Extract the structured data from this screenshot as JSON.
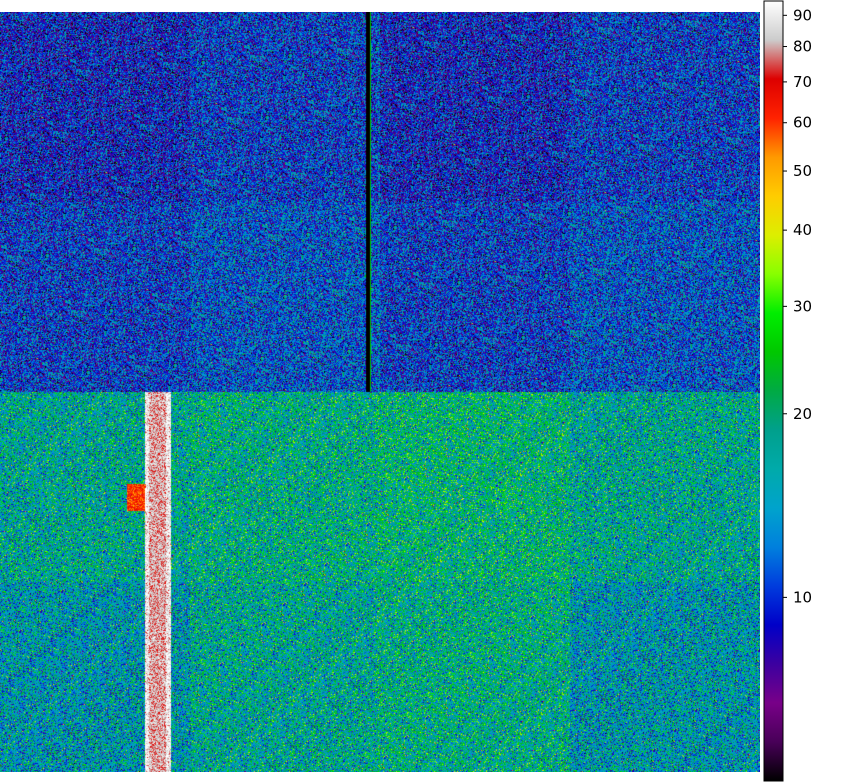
{
  "chart_data": {
    "type": "heatmap",
    "title": "",
    "xlabel": "",
    "ylabel": "",
    "colorbar": {
      "scale": "log",
      "range": [
        5,
        95
      ],
      "colormap": "nipy_spectral",
      "ticks": [
        {
          "value": 10,
          "label": "10"
        },
        {
          "value": 20,
          "label": "20"
        },
        {
          "value": 30,
          "label": "30"
        },
        {
          "value": 40,
          "label": "40"
        },
        {
          "value": 50,
          "label": "50"
        },
        {
          "value": 60,
          "label": "60"
        },
        {
          "value": 70,
          "label": "70"
        },
        {
          "value": 80,
          "label": "80"
        },
        {
          "value": 90,
          "label": "90"
        }
      ]
    },
    "grid": false,
    "grid_cells": {
      "columns": 4,
      "rows": 4,
      "values": [
        [
          9,
          10,
          9,
          10
        ],
        [
          10,
          11,
          10,
          11
        ],
        [
          17,
          18,
          19,
          17
        ],
        [
          15,
          17,
          18,
          15
        ]
      ]
    },
    "features": [
      {
        "name": "bright-column",
        "value": 80
      },
      {
        "name": "dark-column-upper",
        "value": 0
      },
      {
        "name": "hot-patch",
        "value": 60
      }
    ]
  }
}
